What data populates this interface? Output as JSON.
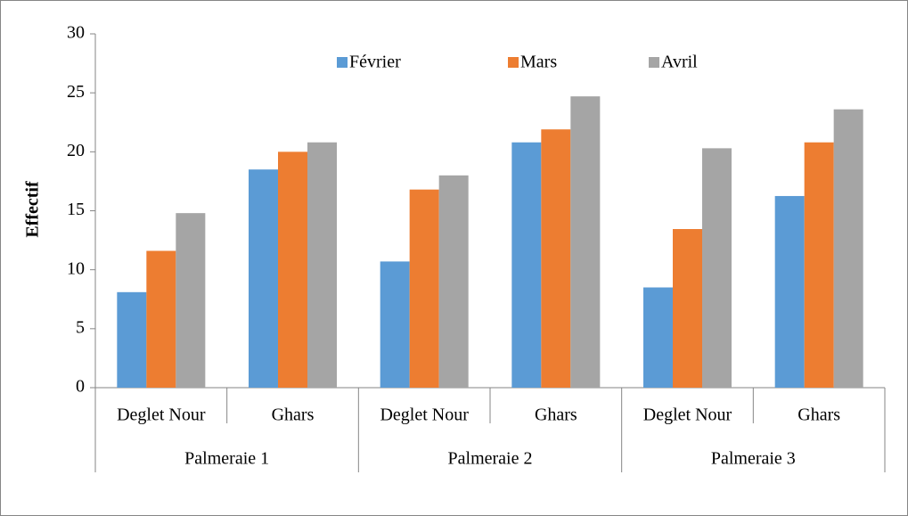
{
  "chart_data": {
    "type": "bar",
    "y_label": "Effectif",
    "categories": [
      "Deglet Nour",
      "Ghars",
      "Deglet Nour",
      "Ghars",
      "Deglet Nour",
      "Ghars"
    ],
    "groups": [
      "Palmeraie 1",
      "Palmeraie 2",
      "Palmeraie 3"
    ],
    "series": [
      {
        "name": "Février",
        "color": "#5b9bd5",
        "values": [
          8.1,
          18.5,
          10.7,
          20.8,
          8.5,
          16.25
        ]
      },
      {
        "name": "Mars",
        "color": "#ed7d31",
        "values": [
          11.6,
          20.0,
          16.8,
          21.9,
          13.45,
          20.8
        ]
      },
      {
        "name": "Avril",
        "color": "#a5a5a5",
        "values": [
          14.8,
          20.8,
          18.0,
          24.7,
          20.3,
          23.6
        ]
      }
    ],
    "ylim": [
      0,
      30
    ],
    "yticks": [
      0,
      5,
      10,
      15,
      20,
      25,
      30
    ],
    "grid": false,
    "legend": "top"
  }
}
